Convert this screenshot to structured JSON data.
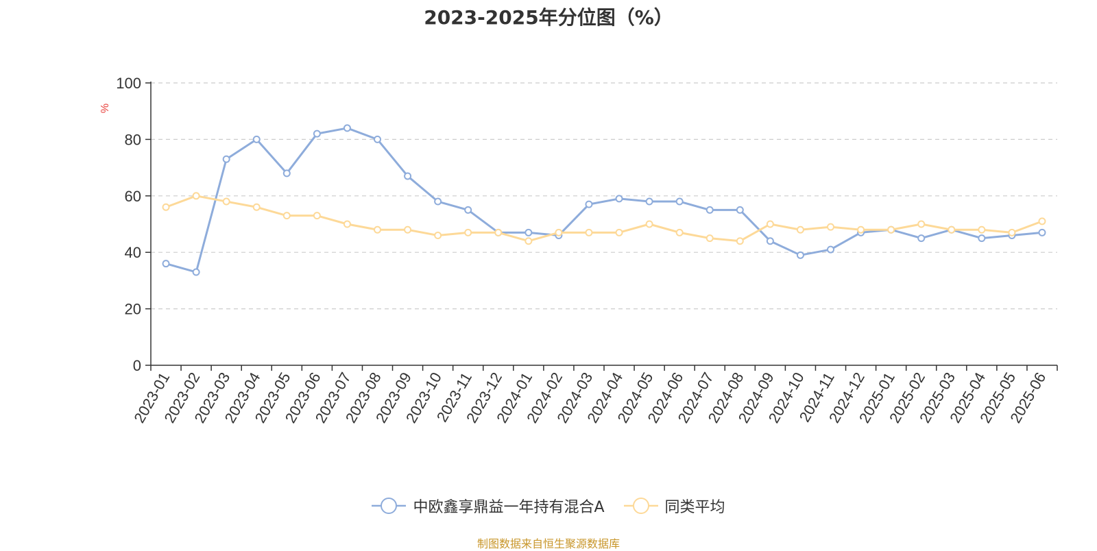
{
  "chart_data": {
    "type": "line",
    "title": "2023-2025年分位图（%）",
    "ylabel": "%",
    "ylim": [
      0,
      100
    ],
    "yticks": [
      0,
      20,
      40,
      60,
      80,
      100
    ],
    "grid": true,
    "legend_position": "bottom",
    "categories": [
      "2023-01",
      "2023-02",
      "2023-03",
      "2023-04",
      "2023-05",
      "2023-06",
      "2023-07",
      "2023-08",
      "2023-09",
      "2023-10",
      "2023-11",
      "2023-12",
      "2024-01",
      "2024-02",
      "2024-03",
      "2024-04",
      "2024-05",
      "2024-06",
      "2024-07",
      "2024-08",
      "2024-09",
      "2024-10",
      "2024-11",
      "2024-12",
      "2025-01",
      "2025-02",
      "2025-03",
      "2025-04",
      "2025-05",
      "2025-06"
    ],
    "series": [
      {
        "name": "中欧鑫享鼎益一年持有混合A",
        "color": "#8eacdb",
        "values": [
          36,
          33,
          73,
          80,
          68,
          82,
          84,
          80,
          67,
          58,
          55,
          47,
          47,
          46,
          57,
          59,
          58,
          58,
          55,
          55,
          44,
          39,
          41,
          47,
          48,
          45,
          48,
          45,
          46,
          47
        ]
      },
      {
        "name": "同类平均",
        "color": "#fdd998",
        "values": [
          56,
          60,
          58,
          56,
          53,
          53,
          50,
          48,
          48,
          46,
          47,
          47,
          44,
          47,
          47,
          47,
          50,
          47,
          45,
          44,
          50,
          48,
          49,
          48,
          48,
          50,
          48,
          48,
          47,
          51
        ]
      }
    ]
  },
  "footer": "制图数据来自恒生聚源数据库"
}
